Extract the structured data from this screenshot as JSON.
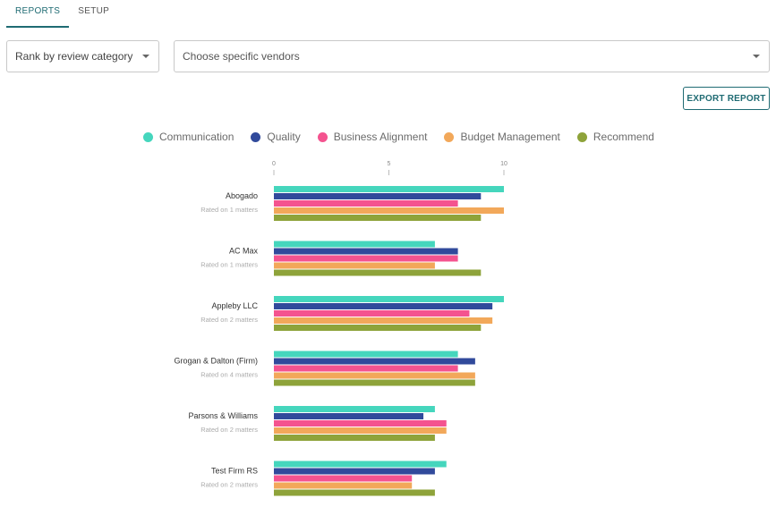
{
  "tabs": [
    {
      "label": "REPORTS",
      "active": true
    },
    {
      "label": "SETUP",
      "active": false
    }
  ],
  "filters": {
    "rank_label": "Rank by review category",
    "vendor_placeholder": "Choose specific vendors"
  },
  "export_label": "EXPORT REPORT",
  "colors": {
    "accent": "#1f6b73",
    "Communication": "#45d6bd",
    "Quality": "#314a9b",
    "Business Alignment": "#f4538f",
    "Budget Management": "#f2a85a",
    "Recommend": "#8ea33a"
  },
  "chart_data": {
    "type": "bar",
    "orientation": "horizontal",
    "xlim": [
      0,
      10
    ],
    "xticks": [
      "0",
      "5",
      "10"
    ],
    "legend_position": "top",
    "categories": [
      "Abogado",
      "AC Max",
      "Appleby LLC",
      "Grogan & Dalton (Firm)",
      "Parsons & Williams",
      "Test Firm RS"
    ],
    "subtitles": [
      "Rated on 1 matters",
      "Rated on 1 matters",
      "Rated on 2 matters",
      "Rated on 4 matters",
      "Rated on 2 matters",
      "Rated on 2 matters"
    ],
    "series": [
      {
        "name": "Communication",
        "values": [
          10,
          7,
          10,
          8,
          7,
          7.5
        ]
      },
      {
        "name": "Quality",
        "values": [
          9,
          8,
          9.5,
          8.75,
          6.5,
          7
        ]
      },
      {
        "name": "Business Alignment",
        "values": [
          8,
          8,
          8.5,
          8,
          7.5,
          6
        ]
      },
      {
        "name": "Budget Management",
        "values": [
          10,
          7,
          9.5,
          8.75,
          7.5,
          6
        ]
      },
      {
        "name": "Recommend",
        "values": [
          9,
          9,
          9,
          8.75,
          7,
          7
        ]
      }
    ]
  }
}
